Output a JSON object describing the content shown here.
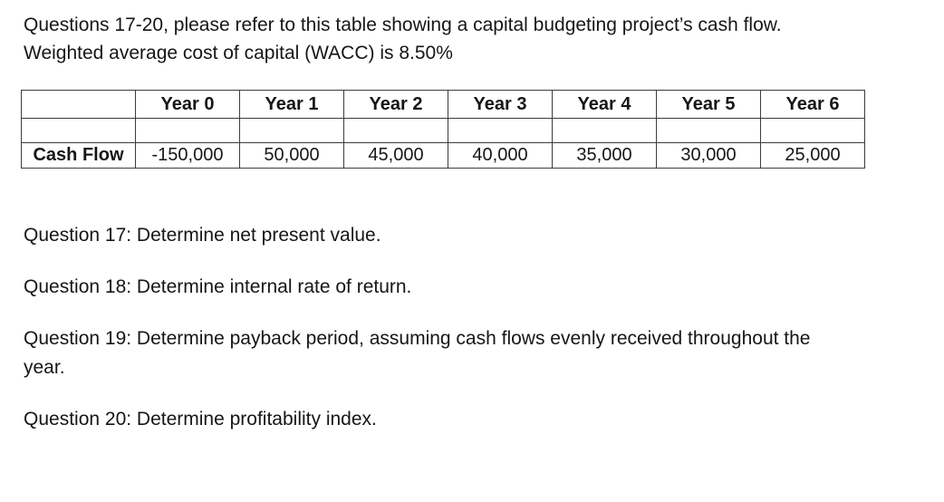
{
  "intro": {
    "line1": "Questions 17-20, please refer to this table showing a capital budgeting project’s cash flow.",
    "line2": "Weighted average cost of capital (WACC) is 8.50%"
  },
  "table": {
    "header": [
      "",
      "Year 0",
      "Year 1",
      "Year 2",
      "Year 3",
      "Year 4",
      "Year 5",
      "Year 6"
    ],
    "rows": [
      [
        "",
        "",
        "",
        "",
        "",
        "",
        "",
        ""
      ],
      [
        "Cash Flow",
        "-150,000",
        "50,000",
        "45,000",
        "40,000",
        "35,000",
        "30,000",
        "25,000"
      ]
    ]
  },
  "questions": [
    {
      "lines": [
        "Question 17: Determine net present value."
      ]
    },
    {
      "lines": [
        "Question 18: Determine internal rate of return."
      ]
    },
    {
      "lines": [
        "Question 19: Determine payback period, assuming cash flows evenly received throughout the",
        "year."
      ]
    },
    {
      "lines": [
        "Question 20: Determine profitability index."
      ]
    }
  ],
  "colors": {
    "text": "#161616",
    "table_border": "#3c3c3c",
    "background": "#ffffff"
  }
}
